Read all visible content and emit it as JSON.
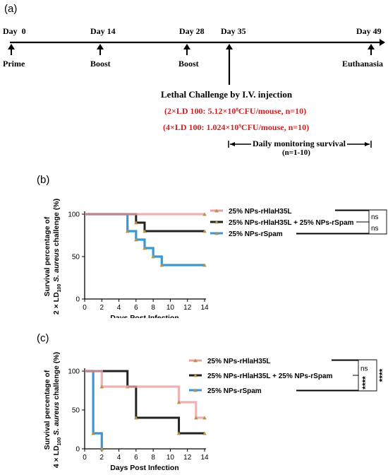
{
  "panel_a": {
    "label": "(a)",
    "events": [
      {
        "day": "Day  0",
        "name": "Prime"
      },
      {
        "day": "Day 14",
        "name": "Boost"
      },
      {
        "day": "Day 28",
        "name": "Boost"
      },
      {
        "day": "Day 35",
        "name": ""
      },
      {
        "day": "Day 49",
        "name": "Euthanasia"
      }
    ],
    "challenge_title": "Lethal Challenge by I.V. injection",
    "dose1": "(2×LD 100: 5.12×10⁸CFU/mouse, n=10)",
    "dose2": "(4×LD 100: 1.024×10⁹CFU/mouse, n=10)",
    "monitoring": "Daily monitoring survival",
    "monitoring_n": "(n=1-10)"
  },
  "colors": {
    "rHlaH35L": "#e8a0a0",
    "combo": "#222222",
    "rSpam": "#3b96d6",
    "marker": "#b5934a"
  },
  "chart_data": [
    {
      "panel": "(b)",
      "type": "line",
      "step": true,
      "xlabel": "Days Post Infection",
      "ylabel_line1": "Survival percentage of",
      "ylabel_line2": "2 × LD100 S. aureus challenge (%)",
      "ylabel_prefix": "2 × LD",
      "ylabel_sub": "100",
      "ylabel_mid": " S. aureus",
      "ylabel_end": " challenge (%)",
      "xticks": [
        "0",
        "2",
        "4",
        "6",
        "8",
        "10",
        "12",
        "14"
      ],
      "yticks": [
        "0",
        "50",
        "100"
      ],
      "xlim": [
        0,
        14
      ],
      "ylim": [
        0,
        100
      ],
      "series": [
        {
          "name": "25% NPs-rHlaH35L",
          "key": "rHlaH35L",
          "x": [
            0,
            14
          ],
          "y": [
            100,
            100
          ],
          "markers": [
            [
              14,
              100
            ]
          ]
        },
        {
          "name": "25% NPs-rHlaH35L + 25% NPs-rSpam",
          "key": "combo",
          "x": [
            0,
            6,
            7,
            14
          ],
          "y": [
            100,
            90,
            80,
            80
          ],
          "markers": [
            [
              6,
              90
            ],
            [
              7,
              80
            ],
            [
              14,
              80
            ]
          ]
        },
        {
          "name": "25% NPs-rSpam",
          "key": "rSpam",
          "x": [
            0,
            5,
            6,
            7,
            8,
            9,
            14
          ],
          "y": [
            100,
            80,
            70,
            60,
            50,
            40,
            40
          ],
          "markers": [
            [
              5,
              80
            ],
            [
              6,
              70
            ],
            [
              7,
              60
            ],
            [
              8,
              50
            ],
            [
              9,
              40
            ],
            [
              14,
              40
            ]
          ]
        }
      ],
      "significance": {
        "inner_top": "ns",
        "inner_bottom": "ns",
        "outer": "**"
      }
    },
    {
      "panel": "(c)",
      "type": "line",
      "step": true,
      "xlabel": "Days Post Infection",
      "ylabel_line1": "Survival percentage of",
      "ylabel_prefix": "4 × LD",
      "ylabel_sub": "100",
      "ylabel_mid": " S. aureus",
      "ylabel_end": " challenge (%)",
      "xticks": [
        "0",
        "2",
        "4",
        "6",
        "8",
        "10",
        "12",
        "14"
      ],
      "yticks": [
        "0",
        "50",
        "100"
      ],
      "xlim": [
        0,
        14
      ],
      "ylim": [
        0,
        100
      ],
      "series": [
        {
          "name": "25% NPs-rHlaH35L",
          "key": "rHlaH35L",
          "x": [
            0,
            2,
            11,
            13,
            14
          ],
          "y": [
            100,
            80,
            60,
            40,
            40
          ],
          "markers": [
            [
              2,
              80
            ],
            [
              11,
              60
            ],
            [
              13,
              40
            ],
            [
              14,
              40
            ]
          ]
        },
        {
          "name": "25% NPs-rHlaH35L + 25% NPs-rSpam",
          "key": "combo",
          "x": [
            0,
            5,
            6,
            11,
            14
          ],
          "y": [
            100,
            80,
            40,
            20,
            20
          ],
          "markers": [
            [
              5,
              80
            ],
            [
              6,
              40
            ],
            [
              11,
              20
            ],
            [
              14,
              20
            ]
          ]
        },
        {
          "name": "25% NPs-rSpam",
          "key": "rSpam",
          "x": [
            0,
            1,
            2
          ],
          "y": [
            100,
            20,
            0
          ],
          "markers": [
            [
              1,
              20
            ],
            [
              2,
              0
            ]
          ]
        }
      ],
      "significance": {
        "inner_top": "ns",
        "inner_bottom": "****",
        "outer": "****"
      }
    }
  ]
}
